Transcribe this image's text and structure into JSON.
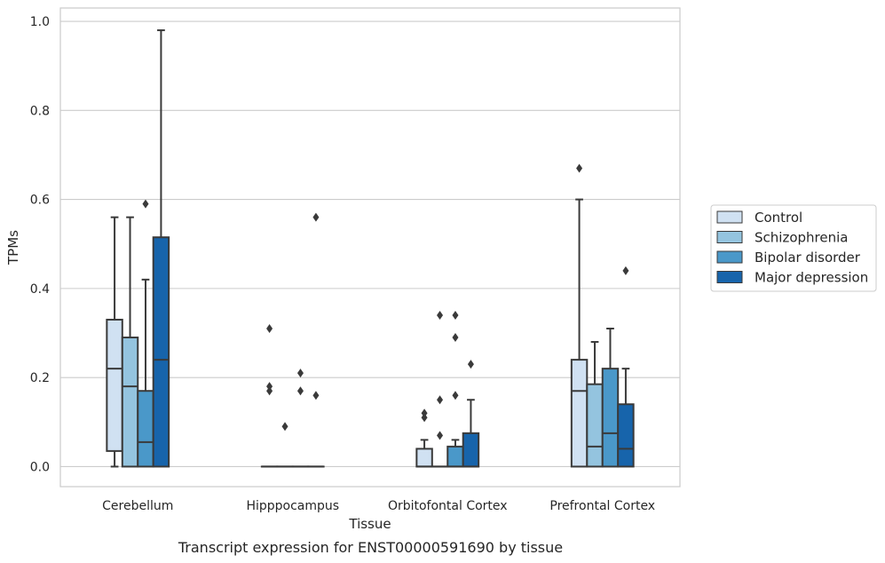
{
  "chart_data": {
    "type": "boxplot",
    "caption": "Transcript expression for ENST00000591690 by tissue",
    "xlabel": "Tissue",
    "ylabel": "TPMs",
    "ylim": [
      -0.045,
      1.03
    ],
    "yticks": [
      0.0,
      0.2,
      0.4,
      0.6,
      0.8,
      1.0
    ],
    "ytick_labels": [
      "0.0",
      "0.2",
      "0.4",
      "0.6",
      "0.8",
      "1.0"
    ],
    "grid": "horizontal",
    "legend_position": "right",
    "categories": [
      "Cerebellum",
      "Hipppocampus",
      "Orbitofontal Cortex",
      "Prefrontal Cortex"
    ],
    "series": [
      {
        "name": "Control",
        "color": "#d0e1f2",
        "boxes": [
          {
            "q1": 0.035,
            "median": 0.22,
            "q3": 0.33,
            "whisker_low": 0.0,
            "whisker_high": 0.56,
            "fliers": []
          },
          {
            "q1": 0.0,
            "median": 0.0,
            "q3": 0.0,
            "whisker_low": 0.0,
            "whisker_high": 0.0,
            "fliers": [
              0.31,
              0.18,
              0.17
            ]
          },
          {
            "q1": 0.0,
            "median": 0.0,
            "q3": 0.04,
            "whisker_low": 0.0,
            "whisker_high": 0.06,
            "fliers": [
              0.12,
              0.11
            ]
          },
          {
            "q1": 0.0,
            "median": 0.17,
            "q3": 0.24,
            "whisker_low": 0.0,
            "whisker_high": 0.6,
            "fliers": [
              0.67
            ]
          }
        ]
      },
      {
        "name": "Schizophrenia",
        "color": "#94c4df",
        "boxes": [
          {
            "q1": 0.0,
            "median": 0.18,
            "q3": 0.29,
            "whisker_low": 0.0,
            "whisker_high": 0.56,
            "fliers": []
          },
          {
            "q1": 0.0,
            "median": 0.0,
            "q3": 0.0,
            "whisker_low": 0.0,
            "whisker_high": 0.0,
            "fliers": [
              0.09
            ]
          },
          {
            "q1": 0.0,
            "median": 0.0,
            "q3": 0.0,
            "whisker_low": 0.0,
            "whisker_high": 0.0,
            "fliers": [
              0.34,
              0.15,
              0.07
            ]
          },
          {
            "q1": 0.0,
            "median": 0.045,
            "q3": 0.185,
            "whisker_low": 0.0,
            "whisker_high": 0.28,
            "fliers": []
          }
        ]
      },
      {
        "name": "Bipolar disorder",
        "color": "#4a98c9",
        "boxes": [
          {
            "q1": 0.0,
            "median": 0.055,
            "q3": 0.17,
            "whisker_low": 0.0,
            "whisker_high": 0.42,
            "fliers": [
              0.59
            ]
          },
          {
            "q1": 0.0,
            "median": 0.0,
            "q3": 0.0,
            "whisker_low": 0.0,
            "whisker_high": 0.0,
            "fliers": [
              0.21,
              0.17
            ]
          },
          {
            "q1": 0.0,
            "median": 0.0,
            "q3": 0.045,
            "whisker_low": 0.0,
            "whisker_high": 0.06,
            "fliers": [
              0.34,
              0.29,
              0.16
            ]
          },
          {
            "q1": 0.0,
            "median": 0.075,
            "q3": 0.22,
            "whisker_low": 0.0,
            "whisker_high": 0.31,
            "fliers": []
          }
        ]
      },
      {
        "name": "Major depression",
        "color": "#1764ab",
        "boxes": [
          {
            "q1": 0.0,
            "median": 0.24,
            "q3": 0.515,
            "whisker_low": 0.0,
            "whisker_high": 0.98,
            "fliers": []
          },
          {
            "q1": 0.0,
            "median": 0.0,
            "q3": 0.0,
            "whisker_low": 0.0,
            "whisker_high": 0.0,
            "fliers": [
              0.56,
              0.16
            ]
          },
          {
            "q1": 0.0,
            "median": 0.0,
            "q3": 0.075,
            "whisker_low": 0.0,
            "whisker_high": 0.15,
            "fliers": [
              0.23
            ]
          },
          {
            "q1": 0.0,
            "median": 0.04,
            "q3": 0.14,
            "whisker_low": 0.0,
            "whisker_high": 0.22,
            "fliers": [
              0.44
            ]
          }
        ]
      }
    ]
  }
}
